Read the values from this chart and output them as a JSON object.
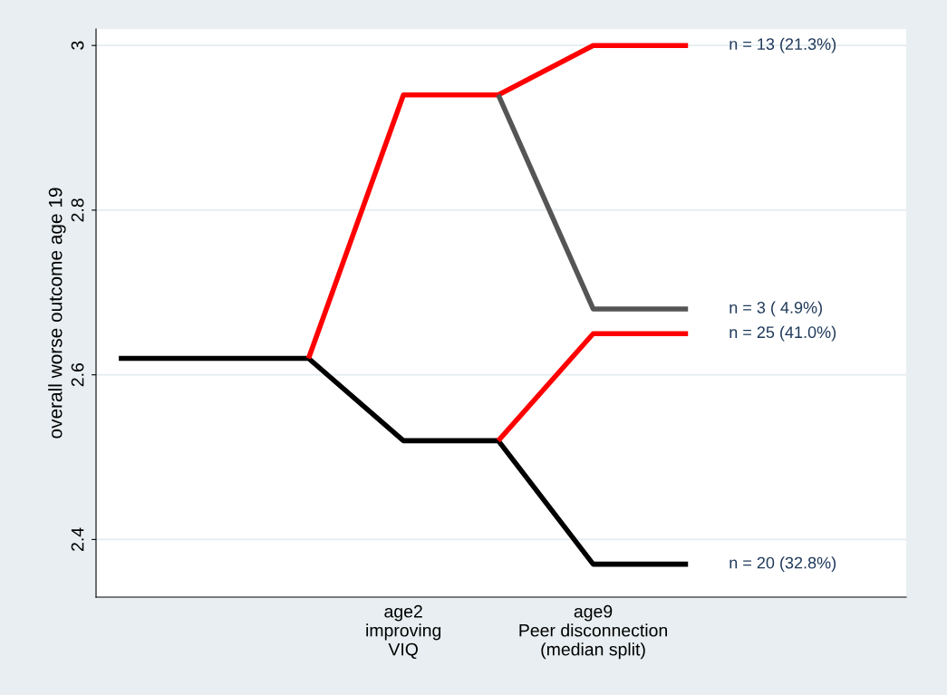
{
  "chart_data": {
    "type": "line",
    "ylabel": "overall worse outcome age 19",
    "categories": [
      null,
      null,
      null,
      "age2\nimproving\nVIQ",
      null,
      "age9\nPeer disconnection\n(median split)",
      null
    ],
    "series": [
      {
        "name": "n = 20 (32.8%)",
        "color": "#000000",
        "values": [
          2.62,
          2.62,
          2.62,
          2.52,
          2.52,
          2.37,
          2.37
        ]
      },
      {
        "name": "n = 13 (21.3%)",
        "color": "#ff0000",
        "values": [
          null,
          null,
          2.62,
          2.94,
          2.94,
          3.0,
          3.0
        ]
      },
      {
        "name": "n = 3 ( 4.9%)",
        "color": "#555555",
        "values": [
          null,
          null,
          null,
          null,
          2.94,
          2.68,
          2.68
        ]
      },
      {
        "name": "n = 25 (41.0%)",
        "color": "#ff0000",
        "values": [
          null,
          null,
          null,
          null,
          2.52,
          2.65,
          2.65
        ]
      }
    ],
    "ylim": [
      2.33,
      3.02
    ],
    "yticks": [
      2.4,
      2.6,
      2.8,
      3
    ],
    "grid": "y",
    "marker": "none",
    "line_style": "solid"
  }
}
